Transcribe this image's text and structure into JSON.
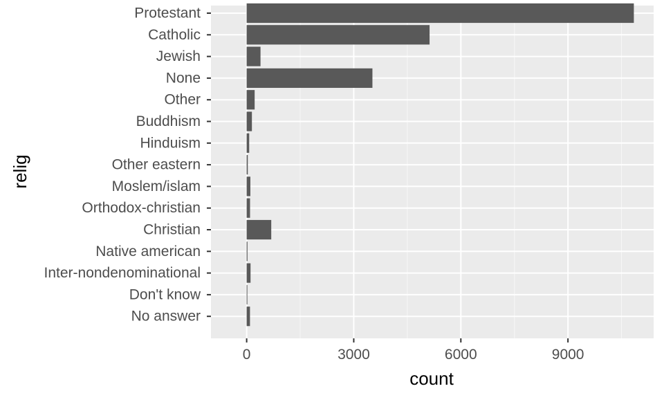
{
  "chart_data": {
    "type": "bar",
    "orientation": "horizontal",
    "title": "",
    "xlabel": "count",
    "ylabel": "relig",
    "categories": [
      "Protestant",
      "Catholic",
      "Jewish",
      "None",
      "Other",
      "Buddhism",
      "Hinduism",
      "Other eastern",
      "Moslem/islam",
      "Orthodox-christian",
      "Christian",
      "Native american",
      "Inter-nondenominational",
      "Don't know",
      "No answer"
    ],
    "values": [
      10846,
      5124,
      388,
      3523,
      224,
      147,
      71,
      32,
      104,
      95,
      689,
      23,
      109,
      15,
      93
    ],
    "xlim": [
      -1000,
      11400
    ],
    "xticks": [
      0,
      3000,
      6000,
      9000
    ],
    "xtick_labels": [
      "0",
      "3000",
      "6000",
      "9000"
    ],
    "grid": true,
    "colors": {
      "bar": "#595959",
      "panel": "#ebebeb",
      "grid_major": "#ffffff",
      "tick_text": "#4d4d4d"
    }
  }
}
